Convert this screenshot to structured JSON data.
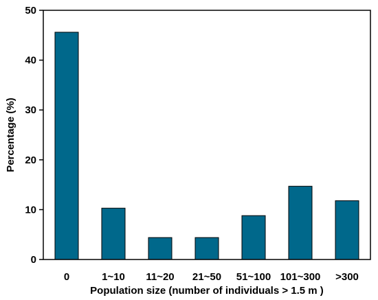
{
  "chart_data": {
    "type": "bar",
    "categories": [
      "0",
      "1~10",
      "11~20",
      "21~50",
      "51~100",
      "101~300",
      ">300"
    ],
    "values": [
      45.6,
      10.3,
      4.4,
      4.4,
      8.8,
      14.7,
      11.8
    ],
    "title": "",
    "xlabel": "Population size (number of individuals > 1.5 m )",
    "ylabel": "Percentage (%)",
    "ylim": [
      0,
      50
    ],
    "yticks": [
      0,
      10,
      20,
      30,
      40,
      50
    ],
    "grid": false,
    "bar_color": "#00688b"
  }
}
